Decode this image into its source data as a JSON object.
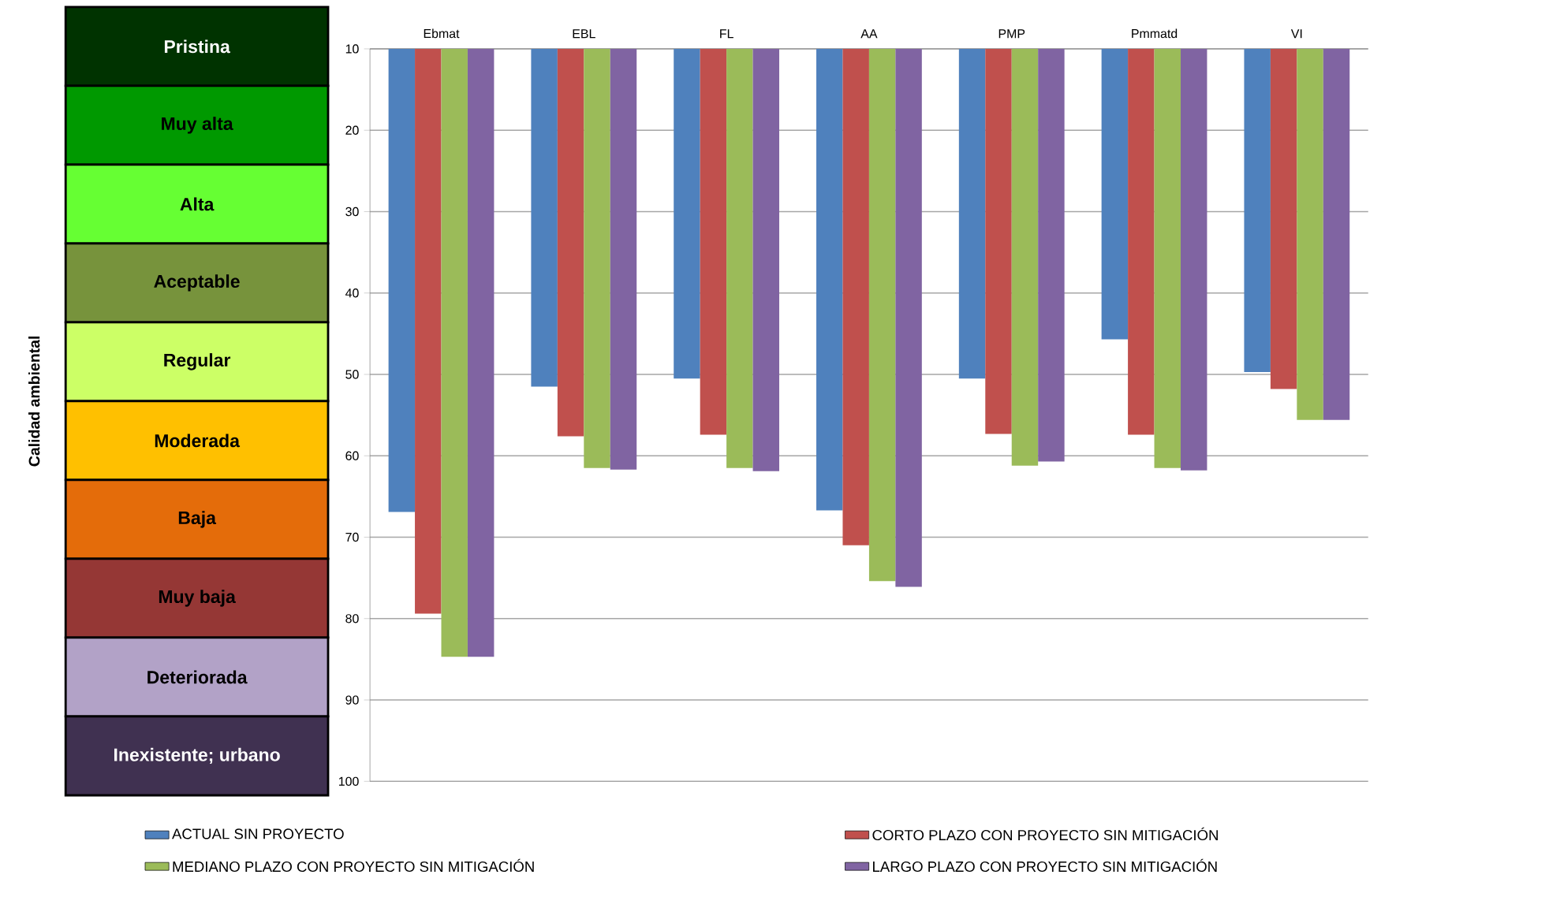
{
  "chart_data": [
    {
      "type": "other",
      "ylabel": "Calidad ambiental",
      "categories": [
        "Pristina",
        "Muy alta",
        "Alta",
        "Aceptable",
        "Regular",
        "Moderada",
        "Baja",
        "Muy baja",
        "Deteriorada",
        "Inexistente; urbano"
      ],
      "colors": [
        "#003300",
        "#009900",
        "#66ff33",
        "#77933c",
        "#ccff66",
        "#ffc000",
        "#e46c0a",
        "#953735",
        "#b2a2c7",
        "#403151"
      ]
    },
    {
      "type": "bar",
      "categories": [
        "Ebmat",
        "EBL",
        "FL",
        "AA",
        "PMP",
        "Pmmatd",
        "VI"
      ],
      "series": [
        {
          "name": "ACTUAL SIN PROYECTO",
          "color": "#4f81bd",
          "values": [
            66.9,
            51.5,
            50.5,
            66.7,
            50.5,
            45.7,
            49.7
          ]
        },
        {
          "name": "CORTO PLAZO CON PROYECTO SIN MITIGACIÓN",
          "color": "#c0504d",
          "values": [
            79.4,
            57.6,
            57.4,
            71.0,
            57.3,
            57.4,
            51.8
          ]
        },
        {
          "name": "MEDIANO PLAZO CON PROYECTO SIN MITIGACIÓN",
          "color": "#9bbb59",
          "values": [
            84.7,
            61.5,
            61.5,
            75.4,
            61.2,
            61.5,
            55.6
          ]
        },
        {
          "name": "LARGO PLAZO CON PROYECTO SIN MITIGACIÓN",
          "color": "#8064a2",
          "values": [
            84.7,
            61.7,
            61.9,
            76.1,
            60.7,
            61.8,
            55.6
          ]
        }
      ],
      "ylim": [
        100,
        10
      ],
      "yticks": [
        10,
        20,
        30,
        40,
        50,
        60,
        70,
        80,
        90,
        100
      ],
      "grid": "y",
      "legend": "bottom"
    }
  ]
}
